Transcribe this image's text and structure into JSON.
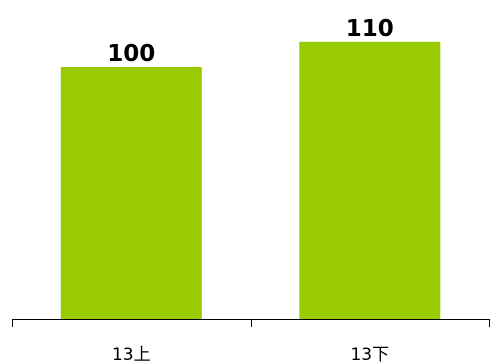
{
  "chart_data": {
    "type": "bar",
    "categories": [
      "13上",
      "13下"
    ],
    "values": [
      100,
      110
    ],
    "title": "",
    "xlabel": "",
    "ylabel": "",
    "ylim": [
      0,
      110
    ],
    "grid": false,
    "legend": "none",
    "bar_color": "#99CC00",
    "data_labels": [
      "100",
      "110"
    ]
  }
}
